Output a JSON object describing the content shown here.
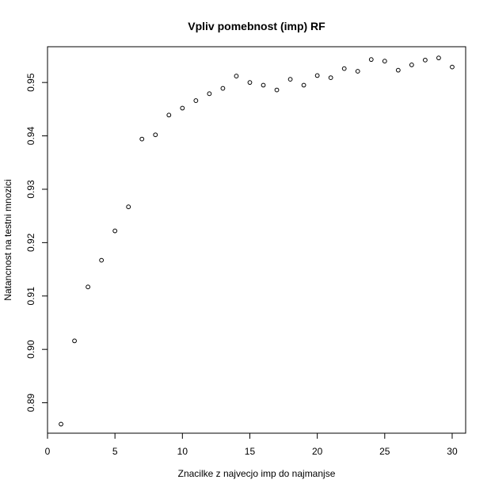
{
  "chart_data": {
    "type": "scatter",
    "title": "Vpliv pomebnost (imp) RF",
    "xlabel": "Znacilke z najvecjo imp do najmanjse",
    "ylabel": "Natancnost na testni mnozici",
    "xlim": [
      0.0,
      31.0
    ],
    "ylim": [
      0.8843,
      0.9567
    ],
    "x_ticks": [
      0,
      5,
      10,
      15,
      20,
      25,
      30
    ],
    "y_ticks": [
      0.89,
      0.9,
      0.91,
      0.92,
      0.93,
      0.94,
      0.95
    ],
    "y_tick_labels": [
      "0.89",
      "0.90",
      "0.91",
      "0.92",
      "0.93",
      "0.94",
      "0.95"
    ],
    "grid": false,
    "marker": "open-circle",
    "x": [
      1,
      2,
      3,
      4,
      5,
      6,
      7,
      8,
      9,
      10,
      11,
      12,
      13,
      14,
      15,
      16,
      17,
      18,
      19,
      20,
      21,
      22,
      23,
      24,
      25,
      26,
      27,
      28,
      29,
      30
    ],
    "y": [
      0.886,
      0.9016,
      0.9117,
      0.9167,
      0.9222,
      0.9267,
      0.9394,
      0.9402,
      0.9439,
      0.9452,
      0.9466,
      0.9479,
      0.9489,
      0.9512,
      0.95,
      0.9495,
      0.9486,
      0.9506,
      0.9495,
      0.9513,
      0.9509,
      0.9526,
      0.9521,
      0.9543,
      0.954,
      0.9523,
      0.9533,
      0.9542,
      0.9546,
      0.9529
    ]
  }
}
